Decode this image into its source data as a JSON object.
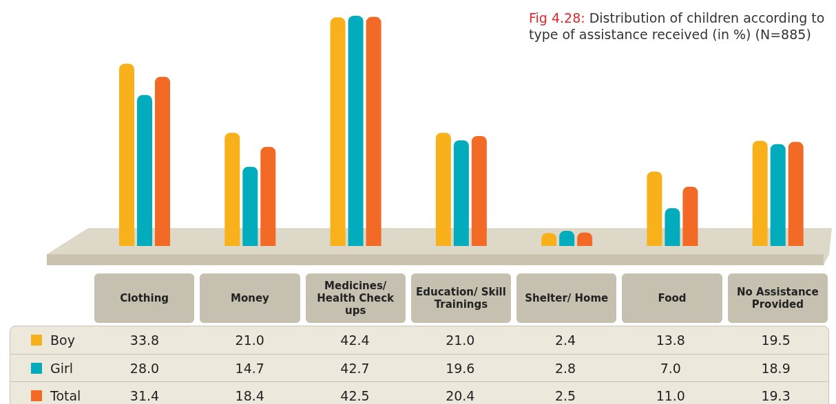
{
  "chart_data": {
    "type": "bar",
    "title": "Fig 4.28: Distribution of children according to type of assistance received (in %) (N=885)",
    "categories": [
      "Clothing",
      "Money",
      "Medicines/ Health Check ups",
      "Education/ Skill Trainings",
      "Shelter/ Home",
      "Food",
      "No Assistance Provided"
    ],
    "series": [
      {
        "name": "Boy",
        "color": "#f9b11b",
        "values": [
          33.8,
          21.0,
          42.4,
          21.0,
          2.4,
          13.8,
          19.5
        ],
        "value_labels": [
          "33.8",
          "21.0",
          "42.4",
          "21.0",
          "2.4",
          "13.8",
          "19.5"
        ]
      },
      {
        "name": "Girl",
        "color": "#03acbd",
        "values": [
          28.0,
          14.7,
          42.7,
          19.6,
          2.8,
          7.0,
          18.9
        ],
        "value_labels": [
          "28.0",
          "14.7",
          "42.7",
          "19.6",
          "2.8",
          "7.0",
          "18.9"
        ]
      },
      {
        "name": "Total",
        "color": "#f26a25",
        "values": [
          31.4,
          18.4,
          42.5,
          20.4,
          2.5,
          11.0,
          19.3
        ],
        "value_labels": [
          "31.4",
          "18.4",
          "42.5",
          "20.4",
          "2.5",
          "11.0",
          "19.3"
        ]
      }
    ],
    "legend": "bottom",
    "grid": false
  }
}
